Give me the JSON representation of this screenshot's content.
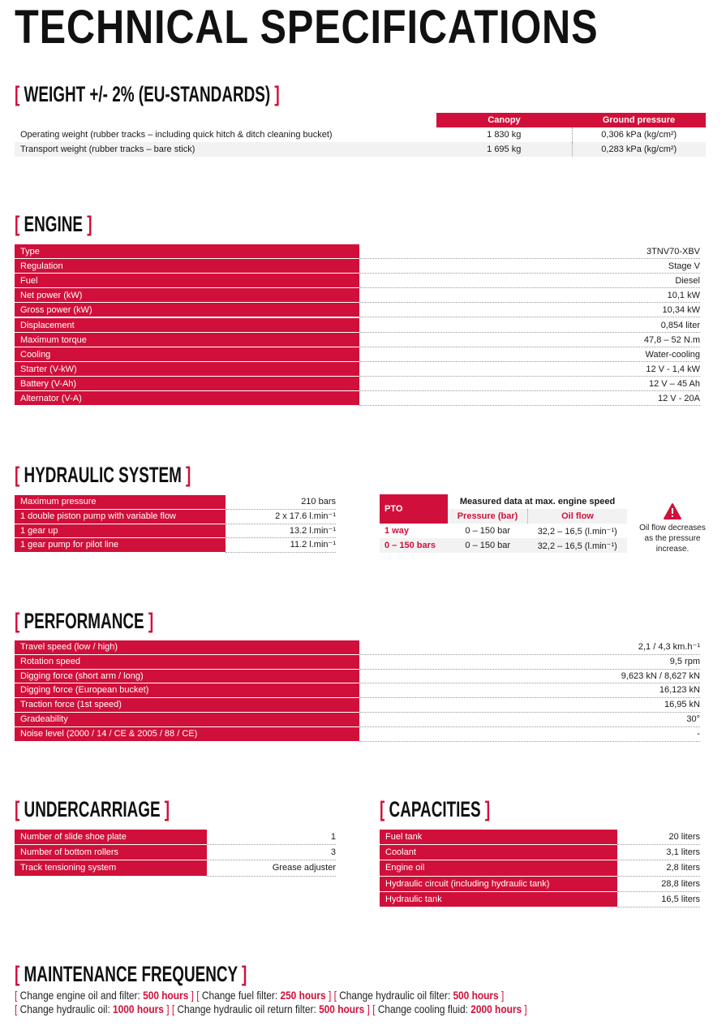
{
  "title": "TECHNICAL SPECIFICATIONS",
  "weight": {
    "heading": "WEIGHT +/- 2% (EU-STANDARDS)",
    "columns": [
      "Canopy",
      "Ground pressure"
    ],
    "rows": [
      [
        "Operating weight (rubber tracks – including quick hitch & ditch cleaning bucket)",
        "1 830 kg",
        "0,306 kPa (kg/cm²)"
      ],
      [
        "Transport weight (rubber tracks – bare stick)",
        "1 695 kg",
        "0,283 kPa (kg/cm²)"
      ]
    ]
  },
  "engine": {
    "heading": "ENGINE",
    "rows": [
      [
        "Type",
        "3TNV70-XBV"
      ],
      [
        "Regulation",
        "Stage V"
      ],
      [
        "Fuel",
        "Diesel"
      ],
      [
        "Net power (kW)",
        "10,1 kW"
      ],
      [
        "Gross power (kW)",
        "10,34 kW"
      ],
      [
        "Displacement",
        "0,854 liter"
      ],
      [
        "Maximum torque",
        "47,8 – 52 N.m"
      ],
      [
        "Cooling",
        "Water-cooling"
      ],
      [
        "Starter (V-kW)",
        "12 V - 1,4 kW"
      ],
      [
        "Battery (V-Ah)",
        "12 V – 45 Ah"
      ],
      [
        "Alternator (V-A)",
        "12 V - 20A"
      ]
    ]
  },
  "hydraulic": {
    "heading": "HYDRAULIC SYSTEM",
    "rows": [
      [
        "Maximum pressure",
        "210 bars"
      ],
      [
        "1 double piston pump with variable flow",
        "2 x 17.6 l.min⁻¹"
      ],
      [
        "1 gear up",
        "13.2 l.min⁻¹"
      ],
      [
        "1 gear pump for pilot line",
        "11.2 l.min⁻¹"
      ]
    ],
    "pto": {
      "label": "PTO",
      "measured": "Measured data at max. engine speed",
      "col_pressure": "Pressure (bar)",
      "col_flow": "Oil flow",
      "rows": [
        [
          "1 way",
          "0 – 150 bar",
          "32,2 – 16,5 (l.min⁻¹)"
        ],
        [
          "0 – 150 bars",
          "0 – 150 bar",
          "32,2 – 16,5 (l.min⁻¹)"
        ]
      ]
    },
    "warning": "Oil flow decreases as the pressure increase."
  },
  "performance": {
    "heading": "PERFORMANCE",
    "rows": [
      [
        "Travel speed (low / high)",
        "2,1 / 4,3 km.h⁻¹"
      ],
      [
        "Rotation speed",
        "9,5 rpm"
      ],
      [
        "Digging force (short arm / long)",
        "9,623 kN / 8,627 kN"
      ],
      [
        "Digging force (European bucket)",
        "16,123 kN"
      ],
      [
        "Traction force (1st speed)",
        "16,95 kN"
      ],
      [
        "Gradeability",
        "30°"
      ],
      [
        "Noise level (2000 / 14 / CE & 2005 / 88 / CE)",
        "-"
      ]
    ]
  },
  "undercarriage": {
    "heading": "UNDERCARRIAGE",
    "rows": [
      [
        "Number of slide shoe plate",
        "1"
      ],
      [
        "Number of bottom rollers",
        "3"
      ],
      [
        "Track tensioning system",
        "Grease adjuster"
      ]
    ]
  },
  "capacities": {
    "heading": "CAPACITIES",
    "rows": [
      [
        "Fuel tank",
        "20 liters"
      ],
      [
        "Coolant",
        "3,1 liters"
      ],
      [
        "Engine oil",
        "2,8 liters"
      ],
      [
        "Hydraulic circuit (including hydraulic tank)",
        "28,8 liters"
      ],
      [
        "Hydraulic tank",
        "16,5 liters"
      ]
    ]
  },
  "maintenance": {
    "heading": "MAINTENANCE FREQUENCY",
    "lines": [
      [
        [
          "Change engine oil and filter: ",
          "500 hours"
        ],
        [
          "Change fuel filter: ",
          "250 hours"
        ],
        [
          "Change hydraulic oil filter: ",
          "500 hours"
        ]
      ],
      [
        [
          "Change hydraulic oil: ",
          "1000 hours"
        ],
        [
          "Change hydraulic oil return filter: ",
          "500 hours"
        ],
        [
          "Change cooling fluid: ",
          "2000 hours"
        ]
      ]
    ]
  },
  "colors": {
    "accent": "#d0103a"
  }
}
